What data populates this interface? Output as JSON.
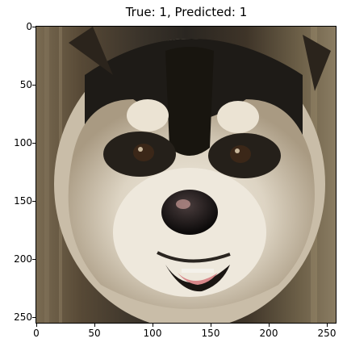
{
  "title": "True: 1, Predicted: 1",
  "image_description_tag": "dog-photo",
  "x_ticks": [
    "0",
    "50",
    "100",
    "150",
    "200",
    "250"
  ],
  "y_ticks": [
    "0",
    "50",
    "100",
    "150",
    "200",
    "250"
  ],
  "colors": {
    "fur_dark": "#1d1b18",
    "fur_light": "#e9e2d4",
    "background": "#6a5d48",
    "tongue": "#d8878a"
  }
}
